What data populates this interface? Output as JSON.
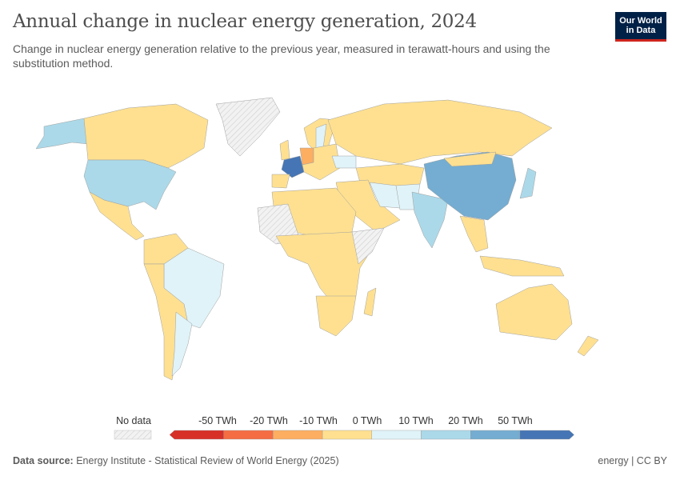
{
  "header": {
    "title": "Annual change in nuclear energy generation, 2024",
    "subtitle": "Change in nuclear energy generation relative to the previous year, measured in terawatt-hours and using the substitution method.",
    "logo_text": "Our World in Data"
  },
  "legend": {
    "no_data_label": "No data",
    "labels": [
      "-50 TWh",
      "-20 TWh",
      "-10 TWh",
      "0 TWh",
      "10 TWh",
      "20 TWh",
      "50 TWh"
    ],
    "colors": [
      "#d73027",
      "#f46d43",
      "#fdae61",
      "#fee090",
      "#e0f3f8",
      "#abd9e9",
      "#74add1",
      "#4575b4"
    ],
    "no_data_color": "#eeeeee"
  },
  "map_bins": {
    "France": "above 50 TWh",
    "China": "20 to 50 TWh",
    "United States": "10 to 20 TWh",
    "India": "10 to 20 TWh",
    "Japan": "10 to 20 TWh",
    "Germany": "-20 to -10 TWh",
    "Brazil": "0 to 10 TWh",
    "Sweden": "0 to 10 TWh",
    "Ukraine": "0 to 10 TWh",
    "Iran": "0 to 10 TWh",
    "Alaska": "10 to 20 TWh"
  },
  "footer": {
    "source_label": "Data source:",
    "source": "Energy Institute - Statistical Review of World Energy (2025)",
    "license": "energy | CC BY"
  }
}
